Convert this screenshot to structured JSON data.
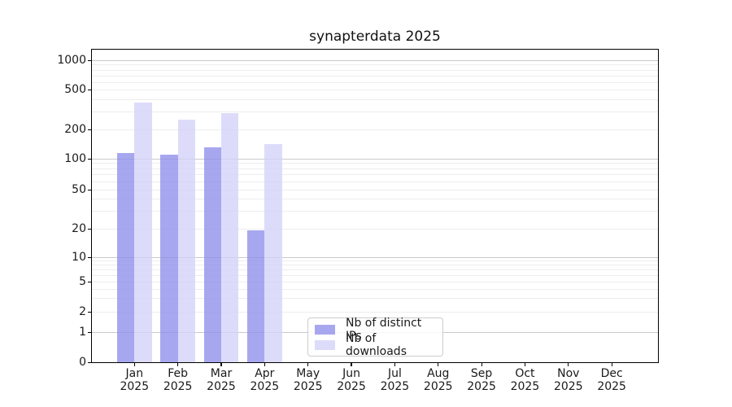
{
  "title": "synapterdata 2025",
  "legend": {
    "items": [
      {
        "label": "Nb of distinct IPs",
        "color": "#a7a7f0"
      },
      {
        "label": "Nb of downloads",
        "color": "#dcdcfa"
      }
    ]
  },
  "y_axis": {
    "ticks": [
      {
        "label": "1000",
        "value": 1000
      },
      {
        "label": "500",
        "value": 500
      },
      {
        "label": "200",
        "value": 200
      },
      {
        "label": "100",
        "value": 100
      },
      {
        "label": "50",
        "value": 50
      },
      {
        "label": "20",
        "value": 20
      },
      {
        "label": "10",
        "value": 10
      },
      {
        "label": "5",
        "value": 5
      },
      {
        "label": "2",
        "value": 2
      },
      {
        "label": "1",
        "value": 1
      },
      {
        "label": "0",
        "value": 0
      }
    ]
  },
  "x_axis": {
    "year": "2025",
    "months": [
      "Jan",
      "Feb",
      "Mar",
      "Apr",
      "May",
      "Jun",
      "Jul",
      "Aug",
      "Sep",
      "Oct",
      "Nov",
      "Dec"
    ]
  },
  "chart_data": {
    "type": "bar",
    "title": "synapterdata 2025",
    "categories": [
      "Jan 2025",
      "Feb 2025",
      "Mar 2025",
      "Apr 2025",
      "May 2025",
      "Jun 2025",
      "Jul 2025",
      "Aug 2025",
      "Sep 2025",
      "Oct 2025",
      "Nov 2025",
      "Dec 2025"
    ],
    "series": [
      {
        "name": "Nb of distinct IPs",
        "legend_color": "#a7a7f0",
        "fill": "rgba(145,145,236,0.8)",
        "values": [
          115,
          110,
          130,
          19,
          0,
          0,
          0,
          0,
          0,
          0,
          0,
          0
        ]
      },
      {
        "name": "Nb of downloads",
        "legend_color": "#dcdcfa",
        "fill": "rgba(211,211,249,0.8)",
        "values": [
          370,
          250,
          290,
          140,
          0,
          0,
          0,
          0,
          0,
          0,
          0,
          0
        ]
      }
    ],
    "yscale": "log-like (symlog) with 0 baseline",
    "y_ticks": [
      1000,
      500,
      200,
      100,
      50,
      20,
      10,
      5,
      2,
      1,
      0
    ],
    "ylim": [
      0,
      1320
    ],
    "grid": "horizontal; darker lines at decades 1/10/100/1000, faint log minors between",
    "legend_position": "inside axes, bottom center-right",
    "bar_layout": "grouped pairs centered on each month tick"
  }
}
